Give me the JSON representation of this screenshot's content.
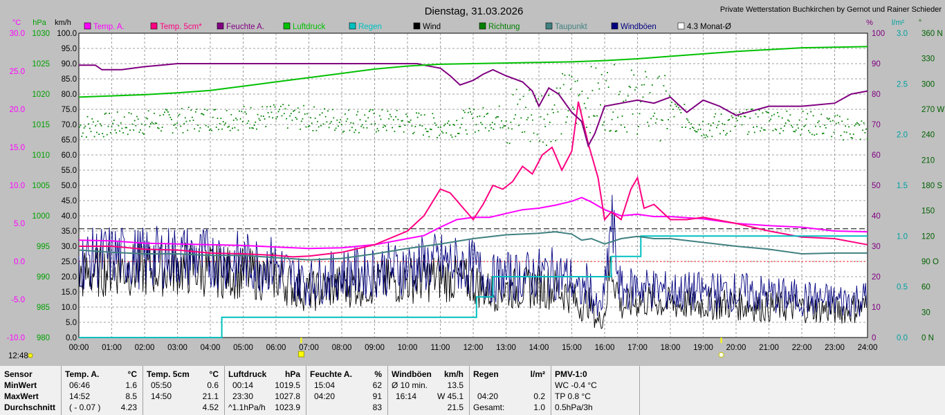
{
  "chart_data": {
    "type": "line",
    "title": "Dienstag, 31.03.2026",
    "credit": "Private Wetterstation Buchkirchen by Gernot und Rainer Schieder",
    "x_range": [
      0,
      24
    ],
    "x_ticks": [
      "00:00",
      "01:00",
      "02:00",
      "03:00",
      "04:00",
      "05:00",
      "06:00",
      "07:00",
      "08:00",
      "09:00",
      "10:00",
      "11:00",
      "12:00",
      "13:00",
      "14:00",
      "15:00",
      "16:00",
      "17:00",
      "18:00",
      "19:00",
      "20:00",
      "21:00",
      "22:00",
      "23:00",
      "24:00"
    ],
    "axes": {
      "temp": {
        "unit": "°C",
        "range": [
          -10,
          30
        ],
        "ticks": [
          "-10.0",
          "-5.0",
          "0.0",
          "5.0",
          "10.0",
          "15.0",
          "20.0",
          "25.0",
          "30.0"
        ]
      },
      "pressure": {
        "unit": "hPa",
        "range": [
          980,
          1030
        ],
        "ticks": [
          "980",
          "985",
          "990",
          "995",
          "1000",
          "1005",
          "1010",
          "1015",
          "1020",
          "1025",
          "1030"
        ]
      },
      "wind": {
        "unit": "km/h",
        "range": [
          0,
          100
        ],
        "ticks": [
          "0.0",
          "5.0",
          "10.0",
          "15.0",
          "20.0",
          "25.0",
          "30.0",
          "35.0",
          "40.0",
          "45.0",
          "50.0",
          "55.0",
          "60.0",
          "65.0",
          "70.0",
          "75.0",
          "80.0",
          "85.0",
          "90.0",
          "95.0",
          "100.0"
        ]
      },
      "humidity": {
        "unit": "%",
        "range": [
          0,
          100
        ],
        "ticks": [
          "0",
          "10",
          "20",
          "30",
          "40",
          "50",
          "60",
          "70",
          "80",
          "90",
          "100"
        ]
      },
      "rain": {
        "unit": "l/m²",
        "range": [
          0,
          3
        ],
        "ticks": [
          "0.0",
          "0.5",
          "1.0",
          "1.5",
          "2.0",
          "2.5",
          "3.0"
        ]
      },
      "direction": {
        "unit": "°",
        "range": [
          0,
          360
        ],
        "ticks": [
          "0 N",
          "30",
          "60",
          "90 O",
          "120",
          "150",
          "180 S",
          "210",
          "240",
          "270 W",
          "300",
          "330",
          "360 N"
        ]
      }
    },
    "legend": [
      {
        "name": "Temp. A.",
        "color": "#ff00ff"
      },
      {
        "name": "Temp. 5cm*",
        "color": "#ff0080"
      },
      {
        "name": "Feuchte A.",
        "color": "#800080"
      },
      {
        "name": "Luftdruck",
        "color": "#00c000"
      },
      {
        "name": "Regen",
        "color": "#00c0c0"
      },
      {
        "name": "Wind",
        "color": "#000000"
      },
      {
        "name": "Richtung",
        "color": "#008000"
      },
      {
        "name": "Taupunkt",
        "color": "#408080"
      },
      {
        "name": "Windböen",
        "color": "#000080"
      },
      {
        "name": "4.3 Monat-Ø",
        "color": "#ffffff"
      }
    ],
    "monthly_mean_temp": 4.3,
    "series": [
      {
        "name": "Temp. A.",
        "axis": "temp",
        "color": "#ff00ff",
        "x": [
          0,
          1,
          2,
          3,
          4,
          5,
          6,
          7,
          8,
          9,
          10,
          10.5,
          11,
          11.5,
          12,
          12.5,
          13,
          13.5,
          14,
          14.5,
          15,
          15.3,
          15.6,
          16,
          16.5,
          17,
          17.5,
          18,
          19,
          20,
          21,
          22,
          23,
          24
        ],
        "y": [
          2.8,
          2.7,
          2.4,
          2.3,
          2.2,
          2.1,
          1.9,
          1.7,
          1.8,
          2.2,
          3.0,
          3.4,
          4.5,
          5.5,
          5.8,
          5.8,
          6.3,
          6.8,
          7.0,
          7.4,
          7.9,
          8.4,
          7.8,
          6.8,
          6.0,
          6.2,
          5.9,
          5.9,
          5.6,
          5.0,
          4.7,
          4.5,
          4.0,
          3.9
        ]
      },
      {
        "name": "Temp. 5cm*",
        "axis": "temp",
        "color": "#ff0080",
        "x": [
          0,
          1,
          2,
          3,
          4,
          5,
          6,
          6.5,
          7,
          8,
          9,
          10,
          10.5,
          11,
          11.3,
          11.6,
          12,
          12.3,
          12.6,
          12.9,
          13.2,
          13.5,
          13.8,
          14.1,
          14.4,
          14.7,
          15,
          15.2,
          15.5,
          15.8,
          16,
          16.2,
          16.5,
          16.8,
          17,
          17.2,
          17.5,
          18,
          18.5,
          19,
          20,
          21,
          22,
          23,
          24
        ],
        "y": [
          2.0,
          2.0,
          1.6,
          1.5,
          1.1,
          1.0,
          0.8,
          0.6,
          0.7,
          1.2,
          2.2,
          4.0,
          6.0,
          9.5,
          9.0,
          7.5,
          5.5,
          7.5,
          10.0,
          9.5,
          10.5,
          12.5,
          11.5,
          14.0,
          15.0,
          12.0,
          14.5,
          21.0,
          15.5,
          11.0,
          5.5,
          6.5,
          5.5,
          9.5,
          11.0,
          7.0,
          7.5,
          5.5,
          5.5,
          5.8,
          5.0,
          4.0,
          3.2,
          3.0,
          2.2
        ]
      },
      {
        "name": "Feuchte A.",
        "axis": "humidity",
        "color": "#800080",
        "x": [
          0,
          0.5,
          0.7,
          1.3,
          2,
          2.5,
          3,
          4,
          5,
          6,
          7,
          8,
          9,
          10,
          10.3,
          10.5,
          11,
          11.3,
          11.6,
          12,
          12.3,
          12.6,
          13,
          13.5,
          13.8,
          14,
          14.3,
          14.6,
          15,
          15.3,
          15.5,
          15.7,
          16,
          16.5,
          17,
          17.5,
          18,
          18.5,
          19,
          19.5,
          20,
          21,
          22,
          23,
          23.5,
          24
        ],
        "y": [
          89.5,
          89.5,
          88,
          88,
          89,
          89.5,
          90,
          90,
          90,
          90,
          90,
          90,
          90,
          90,
          90,
          89.5,
          88.5,
          86,
          83,
          84.5,
          86.5,
          88,
          86,
          84,
          81,
          76,
          82,
          80,
          74,
          71,
          63,
          67,
          76,
          77,
          78,
          77,
          79,
          74,
          78,
          76,
          73,
          76,
          76,
          77,
          80,
          81
        ]
      },
      {
        "name": "Luftdruck",
        "axis": "pressure",
        "color": "#00c000",
        "x": [
          0,
          1,
          2,
          3,
          4,
          5,
          6,
          7,
          8,
          9,
          10,
          11,
          12,
          13,
          14,
          15,
          16,
          17,
          18,
          19,
          20,
          21,
          22,
          23,
          24
        ],
        "y": [
          1019.5,
          1019.7,
          1019.9,
          1020.2,
          1020.6,
          1021.3,
          1022.0,
          1022.7,
          1023.4,
          1024.1,
          1024.6,
          1024.9,
          1025.0,
          1025.1,
          1025.2,
          1025.3,
          1025.5,
          1025.8,
          1026.2,
          1026.6,
          1027.0,
          1027.3,
          1027.6,
          1027.7,
          1027.8
        ]
      },
      {
        "name": "Regen",
        "axis": "rain",
        "color": "#00c0c0",
        "step": true,
        "x": [
          0,
          4.35,
          4.35,
          12.1,
          12.1,
          12.6,
          12.6,
          14.7,
          14.7,
          16.2,
          16.2,
          17.1,
          17.1,
          24
        ],
        "y": [
          0,
          0,
          0.2,
          0.2,
          0.4,
          0.4,
          0.6,
          0.6,
          0.6,
          0.6,
          0.8,
          0.8,
          1.0,
          1.0
        ]
      },
      {
        "name": "Taupunkt",
        "axis": "temp",
        "color": "#408080",
        "x": [
          0,
          1,
          2,
          3,
          4,
          5,
          6,
          7,
          8,
          9,
          10,
          11,
          12,
          13,
          14,
          14.5,
          15,
          15.3,
          15.6,
          16,
          16.5,
          17,
          17.5,
          18,
          19,
          20,
          21,
          22,
          23,
          24
        ],
        "y": [
          1.5,
          1.2,
          1.0,
          1.0,
          0.8,
          0.8,
          0.5,
          0.2,
          0.4,
          1.0,
          1.7,
          2.3,
          3.0,
          3.5,
          3.7,
          3.9,
          3.6,
          2.8,
          3.0,
          2.3,
          3.0,
          3.3,
          3.0,
          3.0,
          2.5,
          2.0,
          1.6,
          1.0,
          1.1,
          1.1
        ]
      }
    ],
    "noisy_series": [
      {
        "name": "Wind",
        "axis": "wind",
        "color": "#000000",
        "x": [
          0,
          1,
          2,
          3,
          4,
          5,
          6,
          6.5,
          7,
          8,
          9,
          10,
          11,
          12,
          12.5,
          13,
          13.5,
          14,
          14.5,
          15,
          15.2,
          15.5,
          15.8,
          16,
          16.2,
          16.5,
          17,
          17.5,
          18,
          19,
          20,
          21,
          22,
          23,
          24
        ],
        "y": [
          20,
          23,
          22,
          23,
          22,
          21,
          20,
          17,
          15,
          17,
          18,
          19,
          20,
          18,
          15,
          16,
          16,
          17,
          16,
          14,
          10,
          12,
          5,
          8,
          25,
          10,
          12,
          12,
          11,
          11,
          11,
          10,
          10,
          9,
          10
        ]
      },
      {
        "name": "Windböen",
        "axis": "wind",
        "color": "#000080",
        "x": [
          0,
          1,
          2,
          3,
          4,
          5,
          6,
          6.5,
          7,
          8,
          9,
          10,
          11,
          12,
          12.5,
          13,
          13.5,
          14,
          14.5,
          15,
          15.2,
          15.5,
          15.8,
          16,
          16.2,
          16.5,
          17,
          17.5,
          18,
          19,
          20,
          21,
          22,
          23,
          24
        ],
        "y": [
          25,
          27,
          26,
          27,
          26,
          25,
          24,
          20,
          18,
          21,
          22,
          23,
          25,
          23,
          19,
          20,
          20,
          21,
          21,
          19,
          14,
          18,
          8,
          14,
          38,
          15,
          17,
          16,
          15,
          15,
          15,
          14,
          13,
          12,
          13
        ]
      }
    ],
    "direction_scatter": {
      "name": "Richtung",
      "axis": "direction",
      "color": "#008000",
      "x": [
        0,
        2,
        4,
        6,
        8,
        10,
        11,
        12,
        13,
        14,
        15,
        16,
        17,
        18,
        19,
        20,
        21,
        22,
        23,
        24
      ],
      "y": [
        250,
        255,
        260,
        262,
        258,
        255,
        250,
        258,
        262,
        265,
        280,
        285,
        280,
        270,
        250,
        255,
        258,
        255,
        250,
        245
      ]
    },
    "markers": {
      "sunrise": "06:46",
      "sunset": "19:33",
      "now": "12:48"
    }
  },
  "stats": {
    "sensor": {
      "header": "Sensor",
      "min": "MinWert",
      "max": "MaxWert",
      "avg": "Durchschnitt"
    },
    "temp_a": {
      "header": "Temp. A.",
      "unit": "°C",
      "min_time": "06:46",
      "min_val": "1.6",
      "max_time": "14:52",
      "max_val": "8.5",
      "avg_note": "( - 0.07 )",
      "avg_val": "4.23"
    },
    "temp_5cm": {
      "header": "Temp. 5cm",
      "unit": "°C",
      "min_time": "05:50",
      "min_val": "0.6",
      "max_time": "14:50",
      "max_val": "21.1",
      "avg_val": "4.52"
    },
    "pressure": {
      "header": "Luftdruck",
      "unit": "hPa",
      "min_time": "00:14",
      "min_val": "1019.5",
      "max_time": "23:30",
      "max_val": "1027.8",
      "avg_note": "^1.1hPa/h",
      "avg_val": "1023.9"
    },
    "humidity": {
      "header": "Feuchte A.",
      "unit": "%",
      "min_time": "15:04",
      "min_val": "62",
      "max_time": "04:20",
      "max_val": "91",
      "avg_val": "83"
    },
    "gusts": {
      "header": "Windböen",
      "unit": "km/h",
      "min_label": "Ø 10 min.",
      "min_val": "13.5",
      "max_time": "16:14",
      "max_val": "W 45.1",
      "avg_val": "21.5"
    },
    "rain": {
      "header": "Regen",
      "unit": "l/m²",
      "max_time": "04:20",
      "max_val": "0.2",
      "avg_label": "Gesamt:",
      "avg_val": "1.0"
    },
    "pmv": {
      "header": "PMV-1:0",
      "line1": "WC -0.4 °C",
      "line2": "TP 0.8 °C",
      "line3": "0.5hPa/3h"
    }
  }
}
